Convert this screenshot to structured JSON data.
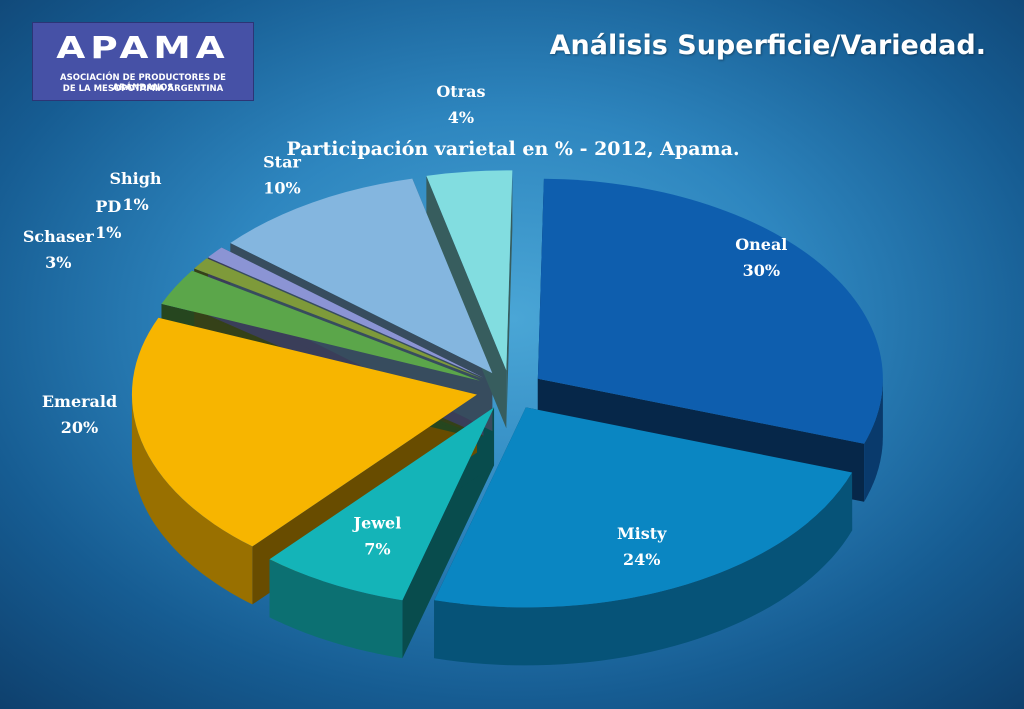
{
  "logo": {
    "word": "APAMA",
    "subtitle_line1": "ASOCIACIÓN DE PRODUCTORES DE ARÁNDANOS",
    "subtitle_line2": "DE LA MESOPOTAMIA ARGENTINA"
  },
  "page_title": "Análisis Superficie/Variedad.",
  "chart_data": {
    "type": "pie",
    "title": "Participación varietal en % - 2012, Apama.",
    "slices": [
      {
        "name": "Oneal",
        "value": 30,
        "label": "30%",
        "color": "#0e5eae"
      },
      {
        "name": "Misty",
        "value": 24,
        "label": "24%",
        "color": "#0a86c2"
      },
      {
        "name": "Jewel",
        "value": 7,
        "label": "7%",
        "color": "#14b4b8"
      },
      {
        "name": "Emerald",
        "value": 20,
        "label": "20%",
        "color": "#f7b500"
      },
      {
        "name": "Schaser",
        "value": 3,
        "label": "3%",
        "color": "#5ba64a"
      },
      {
        "name": "PD",
        "value": 1,
        "label": "1%",
        "color": "#7e9a3a"
      },
      {
        "name": "Shigh",
        "value": 1,
        "label": "1%",
        "color": "#8b94d4"
      },
      {
        "name": "Star",
        "value": 10,
        "label": "10%",
        "color": "#84b6df"
      },
      {
        "name": "Otras",
        "value": 4,
        "label": "4%",
        "color": "#82dde0"
      }
    ],
    "exploded": true,
    "three_d": true,
    "data_labels": "name and percent",
    "legend": "none"
  }
}
